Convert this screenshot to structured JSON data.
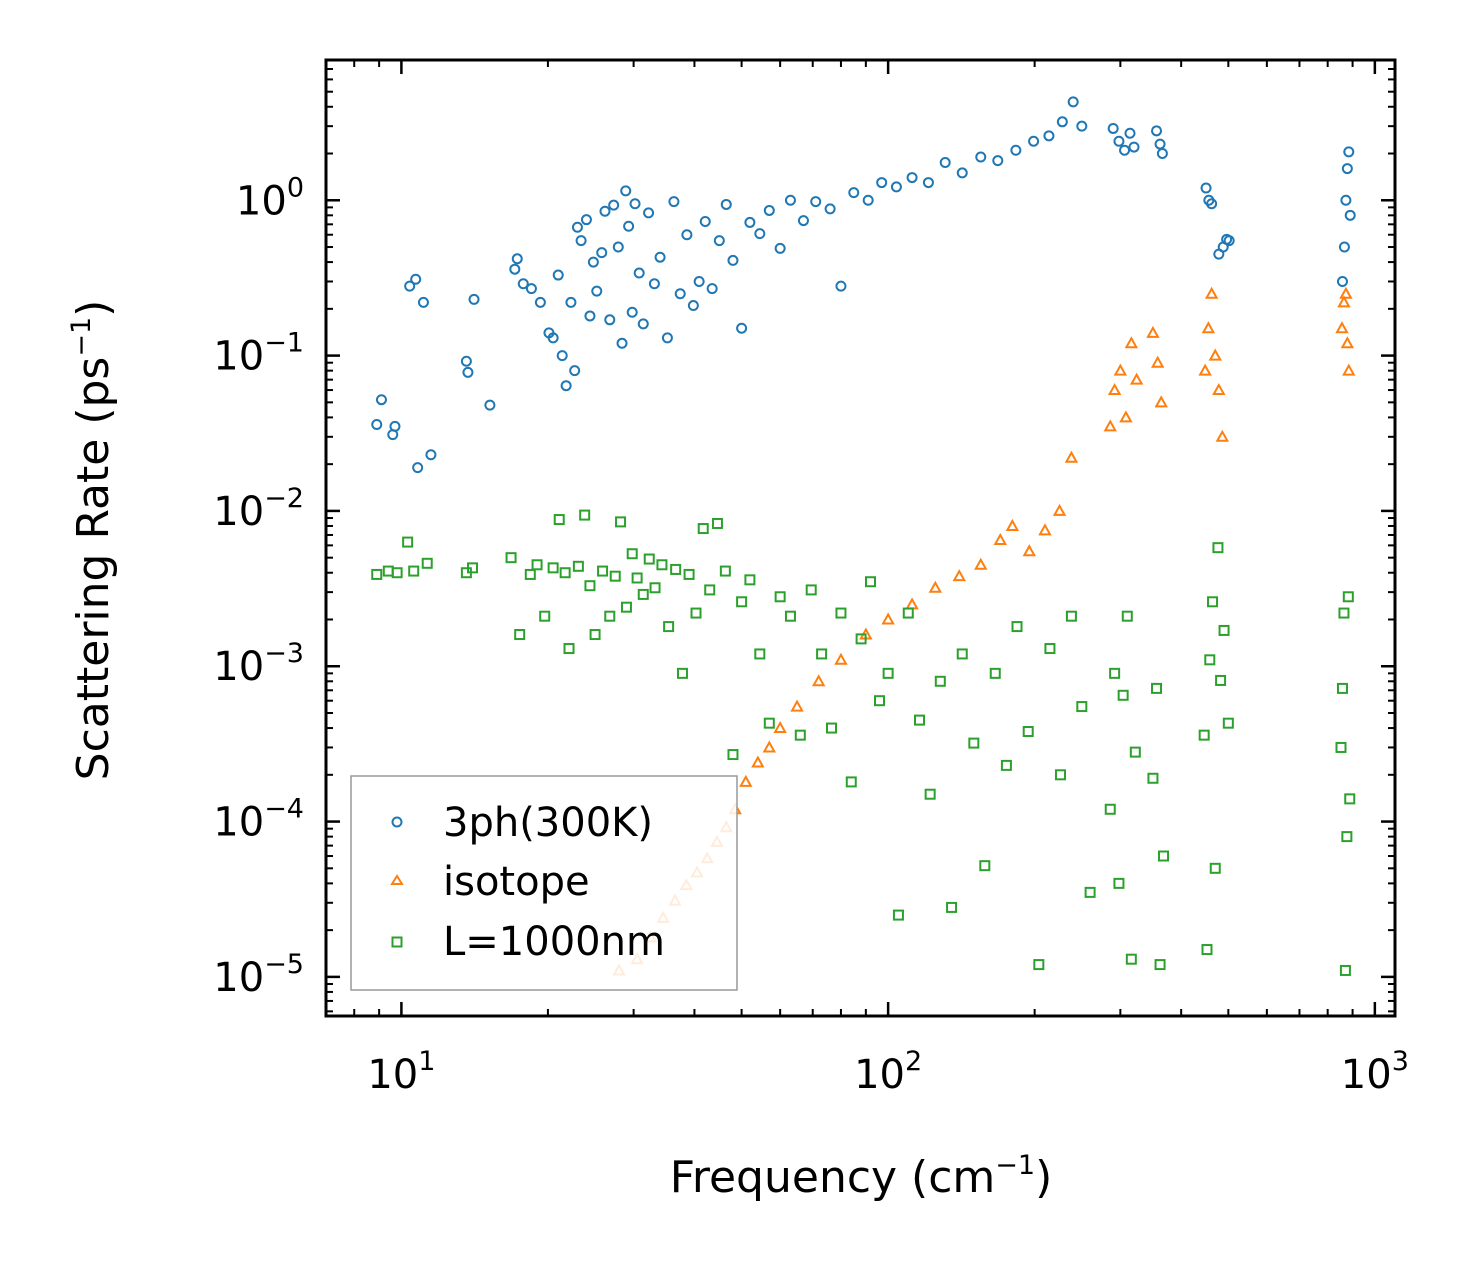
{
  "chart_data": {
    "type": "scatter",
    "title": "",
    "xlabel": "Frequency (cm",
    "xlabel_sup": "−1",
    "xlabel_end": ")",
    "ylabel": "Scattering Rate (ps",
    "ylabel_sup": "−1",
    "ylabel_end": ")",
    "xscale": "log",
    "yscale": "log",
    "xlim": [
      7,
      1100
    ],
    "ylim": [
      5.6e-06,
      8
    ],
    "xticks": [
      {
        "value": 10,
        "base": "10",
        "exp": "1"
      },
      {
        "value": 100,
        "base": "10",
        "exp": "2"
      },
      {
        "value": 1000,
        "base": "10",
        "exp": "3"
      }
    ],
    "yticks": [
      {
        "value": 1e-05,
        "base": "10",
        "exp": "−5"
      },
      {
        "value": 0.0001,
        "base": "10",
        "exp": "−4"
      },
      {
        "value": 0.001,
        "base": "10",
        "exp": "−3"
      },
      {
        "value": 0.01,
        "base": "10",
        "exp": "−2"
      },
      {
        "value": 0.1,
        "base": "10",
        "exp": "−1"
      },
      {
        "value": 1,
        "base": "10",
        "exp": "0"
      }
    ],
    "legend_position": "lower-left",
    "series": [
      {
        "name": "3ph(300K)",
        "marker": "circle",
        "color": "#1f77b4",
        "points": [
          [
            8.9,
            0.036
          ],
          [
            9.1,
            0.052
          ],
          [
            9.6,
            0.031
          ],
          [
            9.7,
            0.035
          ],
          [
            10.4,
            0.28
          ],
          [
            10.7,
            0.31
          ],
          [
            10.8,
            0.019
          ],
          [
            11.1,
            0.22
          ],
          [
            11.5,
            0.023
          ],
          [
            13.6,
            0.092
          ],
          [
            13.7,
            0.078
          ],
          [
            14.1,
            0.23
          ],
          [
            15.2,
            0.048
          ],
          [
            17.1,
            0.36
          ],
          [
            17.3,
            0.42
          ],
          [
            17.8,
            0.29
          ],
          [
            18.5,
            0.27
          ],
          [
            19.3,
            0.22
          ],
          [
            20.1,
            0.14
          ],
          [
            20.5,
            0.13
          ],
          [
            21.0,
            0.33
          ],
          [
            21.4,
            0.1
          ],
          [
            21.8,
            0.064
          ],
          [
            22.3,
            0.22
          ],
          [
            22.7,
            0.08
          ],
          [
            23.0,
            0.67
          ],
          [
            23.4,
            0.55
          ],
          [
            24.0,
            0.75
          ],
          [
            24.4,
            0.18
          ],
          [
            24.8,
            0.4
          ],
          [
            25.2,
            0.26
          ],
          [
            25.8,
            0.46
          ],
          [
            26.2,
            0.85
          ],
          [
            26.8,
            0.17
          ],
          [
            27.3,
            0.93
          ],
          [
            27.9,
            0.5
          ],
          [
            28.4,
            0.12
          ],
          [
            28.9,
            1.15
          ],
          [
            29.3,
            0.68
          ],
          [
            29.8,
            0.19
          ],
          [
            30.2,
            0.95
          ],
          [
            30.8,
            0.34
          ],
          [
            31.4,
            0.16
          ],
          [
            32.2,
            0.83
          ],
          [
            33.1,
            0.29
          ],
          [
            34.0,
            0.43
          ],
          [
            35.2,
            0.13
          ],
          [
            36.3,
            0.98
          ],
          [
            37.4,
            0.25
          ],
          [
            38.6,
            0.6
          ],
          [
            39.8,
            0.21
          ],
          [
            40.9,
            0.3
          ],
          [
            42.1,
            0.73
          ],
          [
            43.5,
            0.27
          ],
          [
            45.0,
            0.55
          ],
          [
            46.5,
            0.94
          ],
          [
            48.0,
            0.41
          ],
          [
            50.0,
            0.15
          ],
          [
            52.0,
            0.72
          ],
          [
            54.5,
            0.61
          ],
          [
            57.0,
            0.86
          ],
          [
            60.0,
            0.49
          ],
          [
            63.0,
            1.0
          ],
          [
            67.0,
            0.74
          ],
          [
            71.0,
            0.98
          ],
          [
            76.0,
            0.88
          ],
          [
            80.0,
            0.28
          ],
          [
            85.0,
            1.12
          ],
          [
            91.0,
            1.0
          ],
          [
            97.0,
            1.3
          ],
          [
            104.0,
            1.22
          ],
          [
            112.0,
            1.4
          ],
          [
            121.0,
            1.3
          ],
          [
            131.0,
            1.75
          ],
          [
            142.0,
            1.5
          ],
          [
            155.0,
            1.9
          ],
          [
            168.0,
            1.8
          ],
          [
            183.0,
            2.1
          ],
          [
            199.0,
            2.4
          ],
          [
            214.0,
            2.6
          ],
          [
            228.0,
            3.2
          ],
          [
            240.0,
            4.3
          ],
          [
            250.0,
            3.0
          ],
          [
            290.0,
            2.9
          ],
          [
            298.0,
            2.4
          ],
          [
            306.0,
            2.1
          ],
          [
            314.0,
            2.7
          ],
          [
            320.0,
            2.2
          ],
          [
            356.0,
            2.8
          ],
          [
            362.0,
            2.3
          ],
          [
            366.0,
            2.0
          ],
          [
            450.0,
            1.2
          ],
          [
            456.0,
            1.0
          ],
          [
            462.0,
            0.95
          ],
          [
            478.0,
            0.45
          ],
          [
            488.0,
            0.5
          ],
          [
            496.0,
            0.56
          ],
          [
            502.0,
            0.55
          ],
          [
            858.0,
            0.3
          ],
          [
            866.0,
            0.5
          ],
          [
            872.0,
            1.0
          ],
          [
            878.0,
            1.6
          ],
          [
            884.0,
            2.05
          ],
          [
            890.0,
            0.8
          ]
        ]
      },
      {
        "name": "isotope",
        "marker": "triangle",
        "color": "#ff7f0e",
        "points": [
          [
            28.0,
            1.1e-05
          ],
          [
            30.5,
            1.3e-05
          ],
          [
            32.5,
            1.8e-05
          ],
          [
            34.5,
            2.4e-05
          ],
          [
            36.5,
            3.1e-05
          ],
          [
            38.5,
            3.9e-05
          ],
          [
            40.5,
            4.7e-05
          ],
          [
            42.5,
            5.8e-05
          ],
          [
            44.5,
            7.4e-05
          ],
          [
            46.5,
            9.2e-05
          ],
          [
            48.5,
            0.00012
          ],
          [
            51.0,
            0.00018
          ],
          [
            54.0,
            0.00024
          ],
          [
            57.0,
            0.0003
          ],
          [
            60.0,
            0.0004
          ],
          [
            65.0,
            0.00055
          ],
          [
            72.0,
            0.0008
          ],
          [
            80.0,
            0.0011
          ],
          [
            90.0,
            0.0016
          ],
          [
            100.0,
            0.002
          ],
          [
            112.0,
            0.0025
          ],
          [
            125.0,
            0.0032
          ],
          [
            140.0,
            0.0038
          ],
          [
            155.0,
            0.0045
          ],
          [
            170.0,
            0.0065
          ],
          [
            180.0,
            0.008
          ],
          [
            195.0,
            0.0055
          ],
          [
            210.0,
            0.0075
          ],
          [
            225.0,
            0.01
          ],
          [
            238.0,
            0.022
          ],
          [
            286.0,
            0.035
          ],
          [
            292.0,
            0.06
          ],
          [
            300.0,
            0.08
          ],
          [
            308.0,
            0.04
          ],
          [
            316.0,
            0.12
          ],
          [
            324.0,
            0.07
          ],
          [
            350.0,
            0.14
          ],
          [
            358.0,
            0.09
          ],
          [
            364.0,
            0.05
          ],
          [
            448.0,
            0.08
          ],
          [
            455.0,
            0.15
          ],
          [
            462.0,
            0.25
          ],
          [
            470.0,
            0.1
          ],
          [
            478.0,
            0.06
          ],
          [
            486.0,
            0.03
          ],
          [
            856.0,
            0.15
          ],
          [
            864.0,
            0.22
          ],
          [
            872.0,
            0.25
          ],
          [
            878.0,
            0.12
          ],
          [
            884.0,
            0.08
          ]
        ]
      },
      {
        "name": "L=1000nm",
        "marker": "square",
        "color": "#2ca02c",
        "points": [
          [
            8.9,
            0.0039
          ],
          [
            9.4,
            0.0041
          ],
          [
            9.8,
            0.004
          ],
          [
            10.3,
            0.0063
          ],
          [
            10.6,
            0.0041
          ],
          [
            11.3,
            0.0046
          ],
          [
            13.6,
            0.004
          ],
          [
            14.0,
            0.0043
          ],
          [
            16.8,
            0.005
          ],
          [
            17.5,
            0.0016
          ],
          [
            18.4,
            0.0039
          ],
          [
            19.0,
            0.0045
          ],
          [
            19.7,
            0.0021
          ],
          [
            20.5,
            0.0043
          ],
          [
            21.1,
            0.0088
          ],
          [
            21.7,
            0.004
          ],
          [
            22.1,
            0.0013
          ],
          [
            23.1,
            0.0044
          ],
          [
            23.8,
            0.0094
          ],
          [
            24.4,
            0.0033
          ],
          [
            25.0,
            0.0016
          ],
          [
            25.9,
            0.0041
          ],
          [
            26.8,
            0.0021
          ],
          [
            27.5,
            0.0038
          ],
          [
            28.2,
            0.0085
          ],
          [
            29.0,
            0.0024
          ],
          [
            29.8,
            0.0053
          ],
          [
            30.5,
            0.0037
          ],
          [
            31.4,
            0.0029
          ],
          [
            32.3,
            0.0049
          ],
          [
            33.2,
            0.0032
          ],
          [
            34.3,
            0.0045
          ],
          [
            35.4,
            0.0018
          ],
          [
            36.6,
            0.0042
          ],
          [
            37.8,
            0.0009
          ],
          [
            39.0,
            0.0039
          ],
          [
            40.3,
            0.0022
          ],
          [
            41.7,
            0.0077
          ],
          [
            43.0,
            0.0031
          ],
          [
            44.6,
            0.0083
          ],
          [
            46.3,
            0.0041
          ],
          [
            48.0,
            0.00027
          ],
          [
            50.0,
            0.0026
          ],
          [
            52.0,
            0.0036
          ],
          [
            54.5,
            0.0012
          ],
          [
            57.0,
            0.00043
          ],
          [
            60.0,
            0.0028
          ],
          [
            63.0,
            0.0021
          ],
          [
            66.0,
            0.00036
          ],
          [
            69.5,
            0.0031
          ],
          [
            73.0,
            0.0012
          ],
          [
            76.5,
            0.0004
          ],
          [
            80.0,
            0.0022
          ],
          [
            84.0,
            0.00018
          ],
          [
            88.0,
            0.0015
          ],
          [
            92.0,
            0.0035
          ],
          [
            96.0,
            0.0006
          ],
          [
            100.0,
            0.0009
          ],
          [
            105.0,
            2.5e-05
          ],
          [
            110.0,
            0.0022
          ],
          [
            116.0,
            0.00045
          ],
          [
            122.0,
            0.00015
          ],
          [
            128.0,
            0.0008
          ],
          [
            135.0,
            2.8e-05
          ],
          [
            142.0,
            0.0012
          ],
          [
            150.0,
            0.00032
          ],
          [
            158.0,
            5.2e-05
          ],
          [
            166.0,
            0.0009
          ],
          [
            175.0,
            0.00023
          ],
          [
            184.0,
            0.0018
          ],
          [
            194.0,
            0.00038
          ],
          [
            204.0,
            1.2e-05
          ],
          [
            215.0,
            0.0013
          ],
          [
            226.0,
            0.0002
          ],
          [
            238.0,
            0.0021
          ],
          [
            250.0,
            0.00055
          ],
          [
            260.0,
            3.5e-05
          ],
          [
            286.0,
            0.00012
          ],
          [
            292.0,
            0.0009
          ],
          [
            298.0,
            4e-05
          ],
          [
            304.0,
            0.00065
          ],
          [
            310.0,
            0.0021
          ],
          [
            316.0,
            1.3e-05
          ],
          [
            322.0,
            0.00028
          ],
          [
            350.0,
            0.00019
          ],
          [
            356.0,
            0.00072
          ],
          [
            362.0,
            1.2e-05
          ],
          [
            368.0,
            6e-05
          ],
          [
            446.0,
            0.00036
          ],
          [
            452.0,
            1.5e-05
          ],
          [
            458.0,
            0.0011
          ],
          [
            464.0,
            0.0026
          ],
          [
            470.0,
            5e-05
          ],
          [
            476.0,
            0.0058
          ],
          [
            482.0,
            0.00081
          ],
          [
            490.0,
            0.0017
          ],
          [
            500.0,
            0.00043
          ],
          [
            852.0,
            0.0003
          ],
          [
            858.0,
            0.00072
          ],
          [
            864.0,
            0.0022
          ],
          [
            870.0,
            1.1e-05
          ],
          [
            876.0,
            8e-05
          ],
          [
            882.0,
            0.0028
          ],
          [
            888.0,
            0.00014
          ]
        ]
      }
    ],
    "legend": [
      {
        "label": "3ph(300K)",
        "marker": "circle",
        "color": "#1f77b4"
      },
      {
        "label": "isotope",
        "marker": "triangle",
        "color": "#ff7f0e"
      },
      {
        "label": "L=1000nm",
        "marker": "square",
        "color": "#2ca02c"
      }
    ]
  }
}
